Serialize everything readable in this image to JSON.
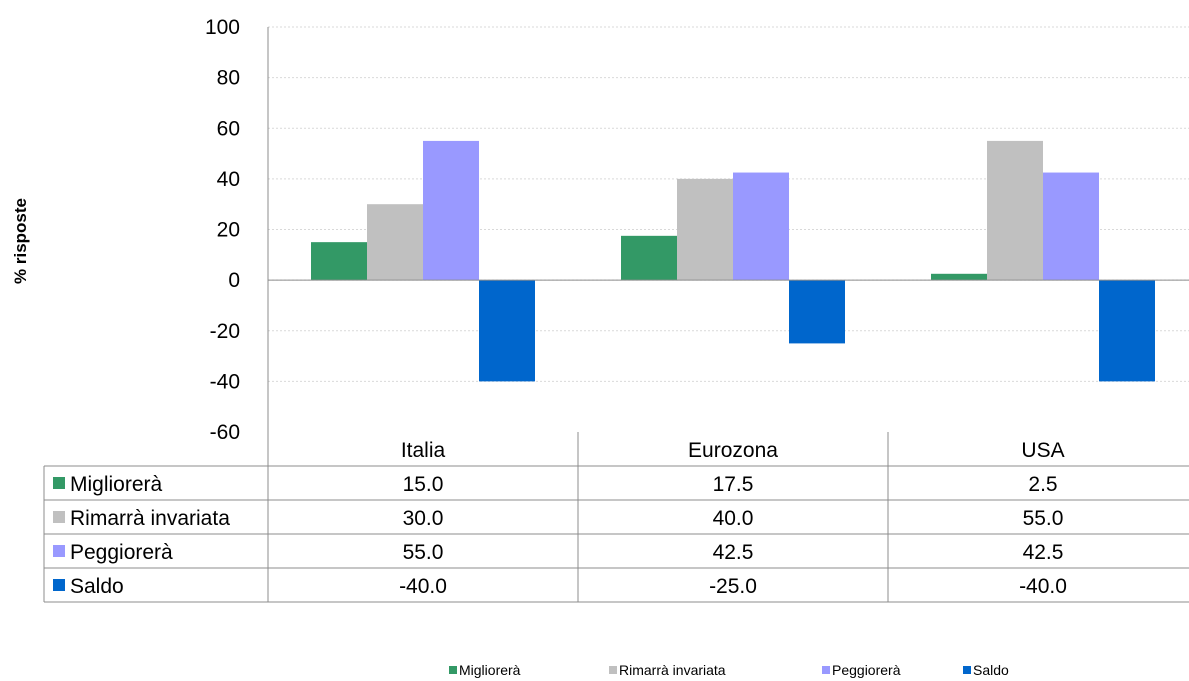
{
  "chart_data": {
    "type": "bar",
    "title": "",
    "xlabel": "",
    "ylabel": "% risposte",
    "categories": [
      "Italia",
      "Eurozona",
      "USA"
    ],
    "ylim": [
      -60,
      100
    ],
    "yticks": [
      100,
      80,
      60,
      40,
      20,
      0,
      -20,
      -40,
      -60
    ],
    "grid": true,
    "legend_position": "bottom",
    "data_table": true,
    "series": [
      {
        "name": "Migliorerà",
        "color": "#339966",
        "values": [
          15.0,
          17.5,
          2.5
        ],
        "labels": [
          "15.0",
          "17.5",
          "2.5"
        ]
      },
      {
        "name": "Rimarrà invariata",
        "color": "#c0c0c0",
        "values": [
          30.0,
          40.0,
          55.0
        ],
        "labels": [
          "30.0",
          "40.0",
          "55.0"
        ]
      },
      {
        "name": "Peggiorerà",
        "color": "#9999ff",
        "values": [
          55.0,
          42.5,
          42.5
        ],
        "labels": [
          "55.0",
          "42.5",
          "42.5"
        ]
      },
      {
        "name": "Saldo",
        "color": "#0066cc",
        "values": [
          -40.0,
          -25.0,
          -40.0
        ],
        "labels": [
          "-40.0",
          "-25.0",
          "-40.0"
        ]
      }
    ]
  }
}
